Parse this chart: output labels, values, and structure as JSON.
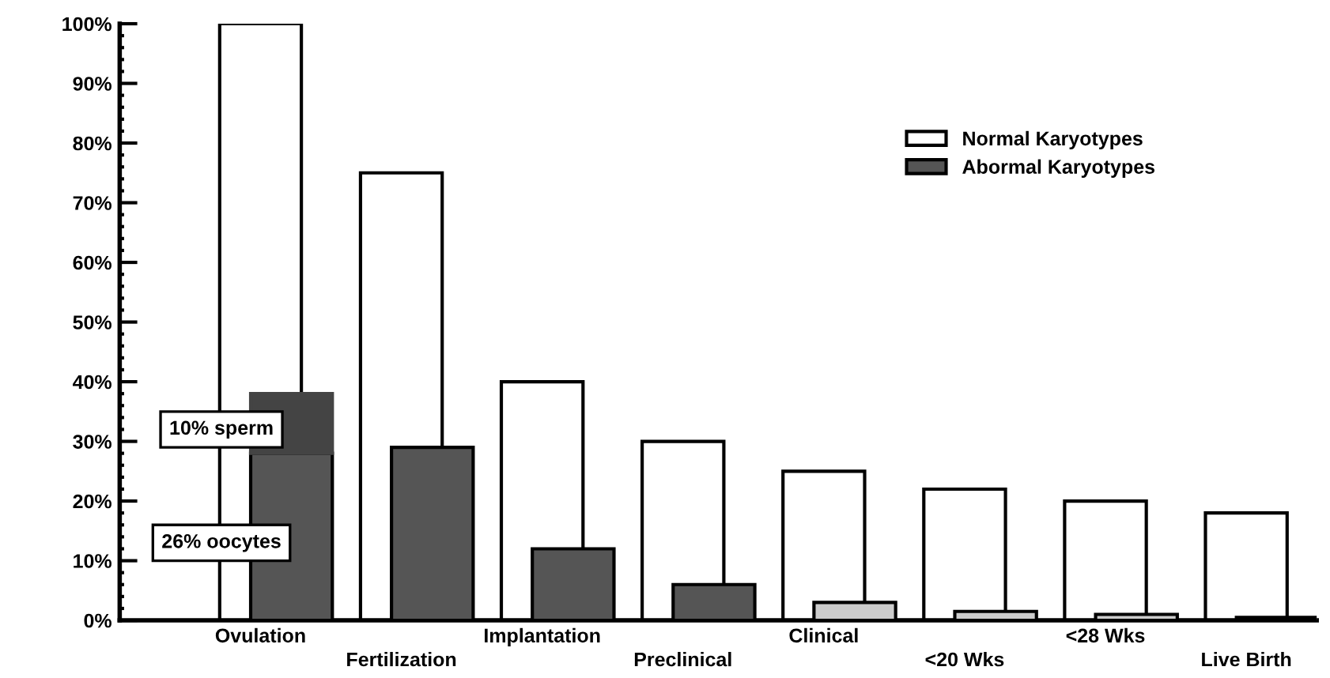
{
  "chart_data": {
    "type": "bar",
    "categories": [
      "Ovulation",
      "Fertilization",
      "Implantation",
      "Preclinical",
      "Clinical",
      "<20 Wks",
      "<28 Wks",
      "Live Birth"
    ],
    "series": [
      {
        "name": "Normal Karyotypes",
        "color": "#ffffff",
        "values": [
          100,
          75,
          40,
          30,
          25,
          22,
          20,
          18
        ]
      },
      {
        "name": "Abormal Karyotypes",
        "color": "#555555",
        "colors": [
          "#555555",
          "#555555",
          "#555555",
          "#555555",
          "#cccccc",
          "#cccccc",
          "#cccccc",
          "#cccccc"
        ],
        "values": [
          28,
          29,
          12,
          6,
          3,
          1.5,
          1,
          0.5
        ]
      },
      {
        "color": "#444444",
        "values": [
          10,
          null,
          null,
          null,
          null,
          null,
          null,
          null
        ],
        "base": [
          28,
          null,
          null,
          null,
          null,
          null,
          null,
          null
        ]
      }
    ],
    "ylim": [
      0,
      100
    ],
    "yticks": [
      {
        "value": 0,
        "label": "0%"
      },
      {
        "value": 10,
        "label": "10%"
      },
      {
        "value": 20,
        "label": "20%"
      },
      {
        "value": 30,
        "label": "30%"
      },
      {
        "value": 40,
        "label": "40%"
      },
      {
        "value": 50,
        "label": "50%"
      },
      {
        "value": 60,
        "label": "60%"
      },
      {
        "value": 70,
        "label": "70%"
      },
      {
        "value": 80,
        "label": "80%"
      },
      {
        "value": 90,
        "label": "90%"
      },
      {
        "value": 100,
        "label": "100%"
      }
    ],
    "annotations": [
      "10% sperm",
      "26% oocytes"
    ],
    "legend": "top right",
    "grid": false
  }
}
